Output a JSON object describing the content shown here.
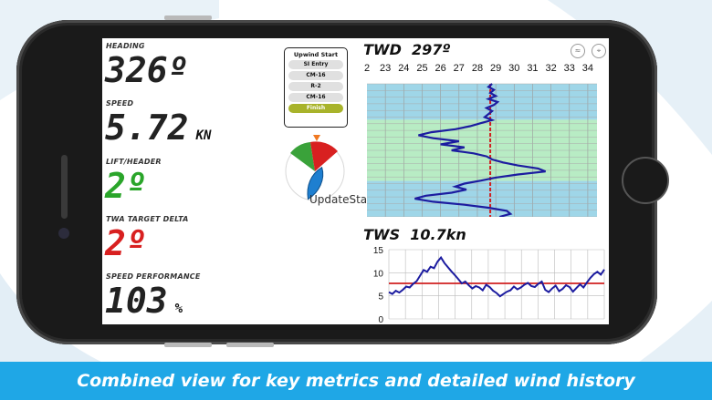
{
  "caption": "Combined view for key metrics and detailed wind history",
  "metrics": [
    {
      "label": "HEADING",
      "value": "326º",
      "unit": "",
      "color": "#222222"
    },
    {
      "label": "SPEED",
      "value": "5.72",
      "unit": "KN",
      "color": "#222222"
    },
    {
      "label": "LIFT/HEADER",
      "value": "2º",
      "unit": "",
      "color": "#2aa52a"
    },
    {
      "label": "TWA TARGET DELTA",
      "value": "2º",
      "unit": "",
      "color": "#d82020"
    },
    {
      "label": "SPEED PERFORMANCE",
      "value": "103",
      "unit": "%",
      "color": "#222222"
    }
  ],
  "course": {
    "title": "Upwind Start",
    "items": [
      "SI Entry",
      "CM-16",
      "R-2",
      "CM-16",
      "Finish"
    ],
    "active_index": 4
  },
  "watermark": "UpdateStar.com",
  "status_icons": [
    "wifi-icon",
    "gps-icon"
  ],
  "colors": {
    "accent": "#1fa7e6",
    "trace": "#1c1ca0",
    "ref_line": "#d02020",
    "band_green": "#b8ecc4",
    "band_blue": "#9fd6e8"
  },
  "chart_data": [
    {
      "type": "line",
      "title": "TWD",
      "value_label": "297º",
      "xlabel": "",
      "ylabel": "",
      "x_ticks": [
        "2",
        "23",
        "24",
        "25",
        "26",
        "27",
        "28",
        "29",
        "30",
        "31",
        "32",
        "33",
        "34"
      ],
      "xlim": [
        22,
        34.5
      ],
      "reference_x": 28.7,
      "grid": true,
      "bands": [
        {
          "from": 0.0,
          "to": 0.27,
          "color": "#9fd6e8"
        },
        {
          "from": 0.27,
          "to": 0.73,
          "color": "#b8ecc4"
        },
        {
          "from": 0.73,
          "to": 1.0,
          "color": "#9fd6e8"
        }
      ],
      "series": [
        {
          "x": [
            28.8,
            28.6,
            28.9,
            28.7,
            29.0,
            28.6,
            29.1,
            28.9,
            28.5,
            28.8,
            28.6,
            28.4,
            28.8,
            28.2,
            27.6,
            26.8,
            25.5,
            24.8,
            25.6,
            27.0,
            26.0,
            27.3,
            26.6,
            27.8,
            28.5,
            28.8,
            29.4,
            30.2,
            31.3,
            31.7,
            30.2,
            29.0,
            28.2,
            27.3,
            26.8,
            27.4,
            26.6,
            25.2,
            24.6,
            25.6,
            27.3,
            28.6,
            29.6,
            29.8,
            29.2
          ]
        }
      ]
    },
    {
      "type": "line",
      "title": "TWS",
      "value_label": "10.7kn",
      "xlabel": "",
      "ylabel": "",
      "y_ticks": [
        0,
        5,
        10,
        15
      ],
      "ylim": [
        0,
        15
      ],
      "reference_y": 7.7,
      "grid": true,
      "series": [
        {
          "y": [
            5.8,
            5.4,
            6.1,
            5.7,
            6.3,
            7.0,
            6.8,
            7.6,
            8.2,
            9.4,
            10.6,
            10.2,
            11.3,
            11.0,
            12.4,
            13.3,
            12.1,
            11.2,
            10.3,
            9.5,
            8.6,
            7.7,
            8.1,
            7.3,
            6.6,
            7.1,
            6.8,
            6.2,
            7.4,
            6.9,
            6.1,
            5.6,
            4.9,
            5.4,
            5.9,
            6.2,
            7.0,
            6.4,
            6.8,
            7.4,
            7.8,
            7.1,
            6.9,
            7.6,
            8.1,
            6.3,
            5.8,
            6.6,
            7.2,
            6.0,
            6.5,
            7.3,
            6.9,
            5.9,
            6.7,
            7.5,
            6.8,
            7.9,
            8.9,
            9.7,
            10.2,
            9.6,
            10.7
          ]
        }
      ]
    }
  ]
}
